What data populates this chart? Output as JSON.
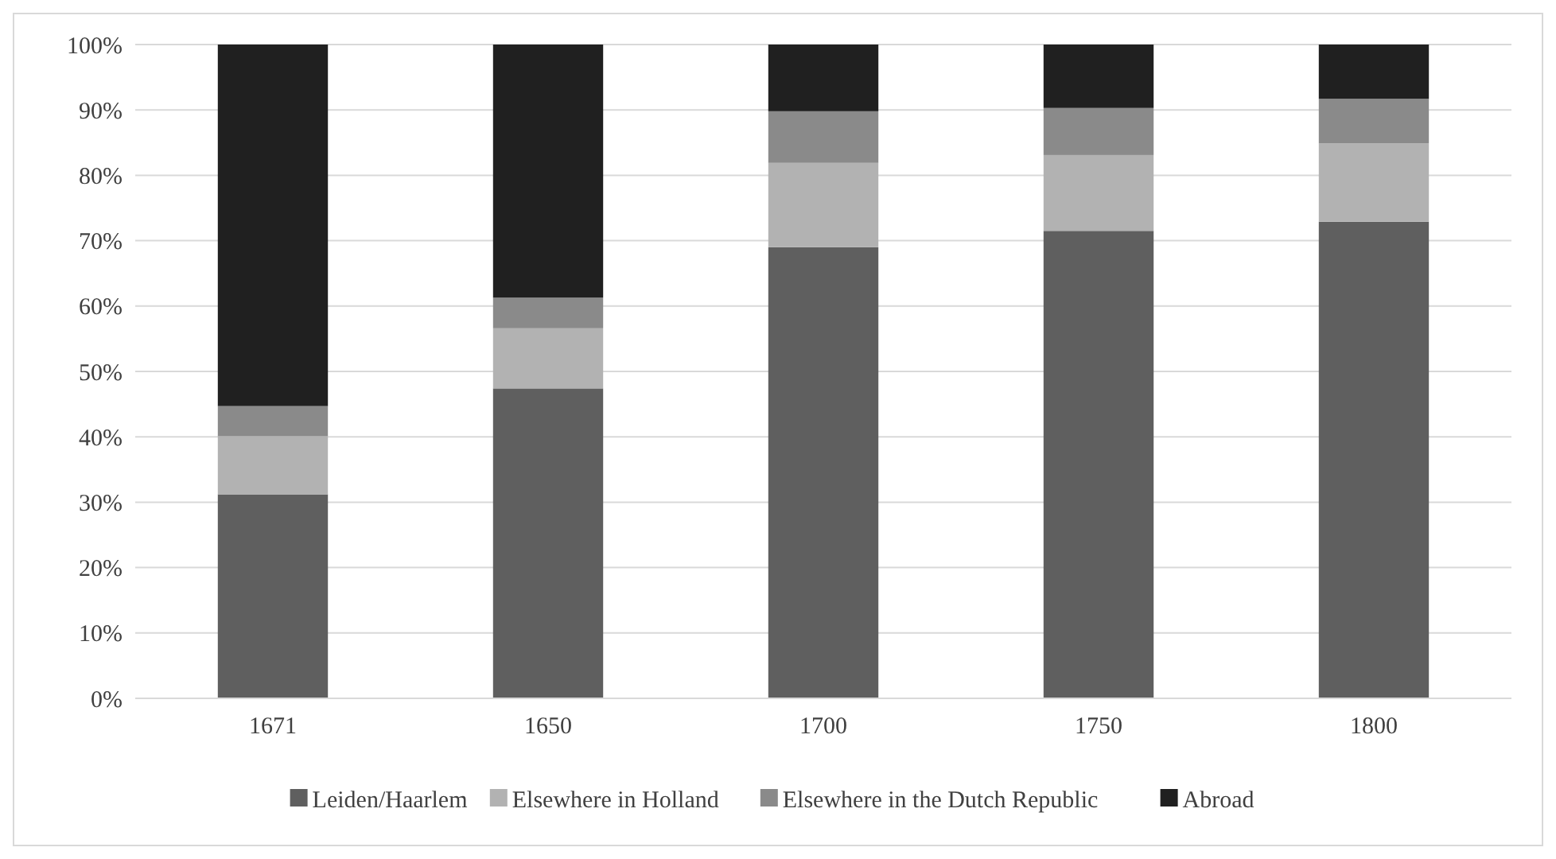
{
  "chart_data": {
    "type": "bar",
    "stacked": true,
    "categories": [
      "1671",
      "1650",
      "1700",
      "1750",
      "1800"
    ],
    "series": [
      {
        "name": "Leiden/Haarlem",
        "color": "#5f5f5f",
        "values": [
          31.2,
          47.4,
          69.0,
          71.5,
          72.9
        ]
      },
      {
        "name": "Elsewhere in Holland",
        "color": "#b2b2b2",
        "values": [
          8.9,
          9.2,
          12.9,
          11.6,
          12.0
        ]
      },
      {
        "name": "Elsewhere in the Dutch Republic",
        "color": "#8a8a8a",
        "values": [
          4.6,
          4.7,
          7.9,
          7.2,
          6.8
        ]
      },
      {
        "name": "Abroad",
        "color": "#202020",
        "values": [
          55.3,
          38.7,
          10.2,
          9.7,
          8.3
        ]
      }
    ],
    "ylim": [
      0,
      100
    ],
    "yticks": [
      {
        "value": 0,
        "label": "0%"
      },
      {
        "value": 10,
        "label": "10%"
      },
      {
        "value": 20,
        "label": "20%"
      },
      {
        "value": 30,
        "label": "30%"
      },
      {
        "value": 40,
        "label": "40%"
      },
      {
        "value": 50,
        "label": "50%"
      },
      {
        "value": 60,
        "label": "60%"
      },
      {
        "value": 70,
        "label": "70%"
      },
      {
        "value": 80,
        "label": "80%"
      },
      {
        "value": 90,
        "label": "90%"
      },
      {
        "value": 100,
        "label": "100%"
      }
    ],
    "grid": "y",
    "legend": "bottom"
  }
}
